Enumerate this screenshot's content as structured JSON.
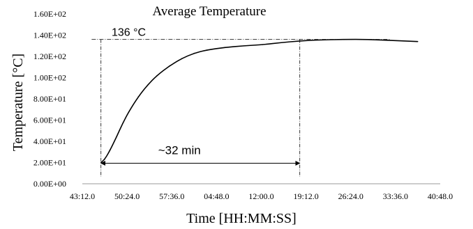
{
  "chart_data": {
    "type": "line",
    "title": "Average Temperature",
    "xlabel": "Time [HH:MM:SS]",
    "ylabel": "Temperature [°C]",
    "x_tick_labels": [
      "43:12.0",
      "50:24.0",
      "57:36.0",
      "04:48.0",
      "12:00.0",
      "19:12.0",
      "26:24.0",
      "33:36.0",
      "40:48.0"
    ],
    "y_tick_labels": [
      "0.00E+00",
      "2.00E+01",
      "4.00E+01",
      "6.00E+01",
      "8.00E+01",
      "1.00E+02",
      "1.20E+02",
      "1.40E+02",
      "1.60E+02"
    ],
    "xlim_minutes": [
      0,
      57.6
    ],
    "ylim": [
      0,
      160
    ],
    "grid": false,
    "legend": "none",
    "series": [
      {
        "color": "#000000",
        "x_minutes": [
          3.0,
          3.6,
          4.5,
          5.5,
          6.5,
          7.5,
          9.0,
          10.5,
          12.0,
          14.0,
          16.0,
          18.0,
          20.0,
          23.0,
          26.0,
          29.0,
          32.0,
          35.0,
          38.0,
          42.0,
          46.0,
          50.0,
          54.0
        ],
        "y": [
          20,
          23,
          32,
          44,
          57,
          68,
          82,
          93,
          102,
          111,
          118,
          123,
          126,
          128.5,
          130,
          131,
          133,
          134.5,
          135.5,
          136,
          136,
          135,
          134
        ]
      }
    ],
    "annotations": {
      "reference_value": 136,
      "reference_label": "136 °C",
      "span_start_minutes": 3.0,
      "span_end_minutes": 35.0,
      "span_label": "~32 min",
      "span_y": 20
    },
    "style": {
      "line_color": "#000000",
      "annotation_color": "#000000",
      "axis_color": "#999999"
    }
  }
}
